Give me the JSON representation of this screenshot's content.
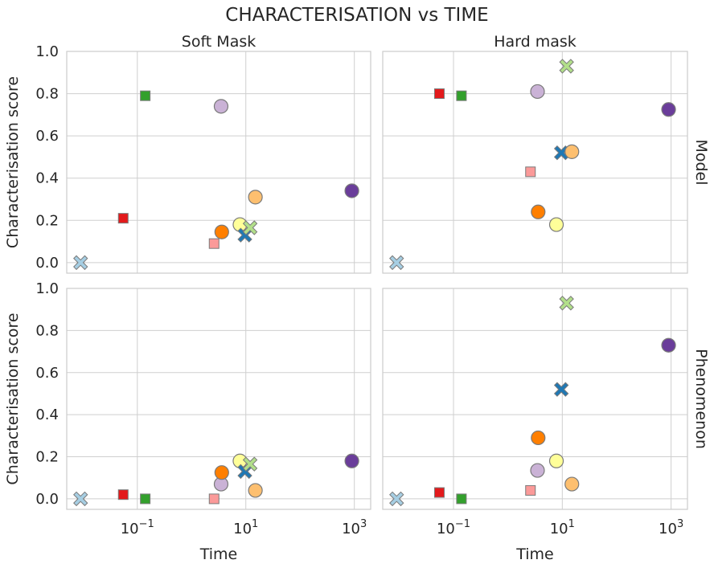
{
  "chart_data": {
    "type": "scatter",
    "title": "CHARACTERISATION vs TIME",
    "xlabel": "Time",
    "ylabel": "Characterisation score",
    "x_scale": "log",
    "xlim": [
      0.005,
      2000
    ],
    "ylim": [
      -0.05,
      1.0
    ],
    "x_ticks": [
      {
        "value": 0.1,
        "base": "10",
        "exp": "−1"
      },
      {
        "value": 10,
        "base": "10",
        "exp": "1"
      },
      {
        "value": 1000,
        "base": "10",
        "exp": "3"
      }
    ],
    "y_ticks": [
      "0.0",
      "0.2",
      "0.4",
      "0.6",
      "0.8",
      "1.0"
    ],
    "columns": [
      "Soft Mask",
      "Hard mask"
    ],
    "rows": [
      "Model",
      "Phenomenon"
    ],
    "grid": true,
    "panels": [
      {
        "row": "Model",
        "column": "Soft Mask",
        "points": [
          {
            "x": 0.009,
            "y": 0.0,
            "color": "#a6cee3",
            "marker": "X"
          },
          {
            "x": 0.055,
            "y": 0.21,
            "color": "#e31a1c",
            "marker": "s"
          },
          {
            "x": 0.14,
            "y": 0.79,
            "color": "#33a02c",
            "marker": "s"
          },
          {
            "x": 2.6,
            "y": 0.09,
            "color": "#fb9a99",
            "marker": "s"
          },
          {
            "x": 3.5,
            "y": 0.74,
            "color": "#cab2d6",
            "marker": "o"
          },
          {
            "x": 3.6,
            "y": 0.145,
            "color": "#ff7f00",
            "marker": "o"
          },
          {
            "x": 7.8,
            "y": 0.18,
            "color": "#ffff99",
            "marker": "o"
          },
          {
            "x": 9.6,
            "y": 0.13,
            "color": "#1f78b4",
            "marker": "X"
          },
          {
            "x": 12.0,
            "y": 0.165,
            "color": "#b2df8a",
            "marker": "X"
          },
          {
            "x": 15.0,
            "y": 0.31,
            "color": "#fdbf6f",
            "marker": "o"
          },
          {
            "x": 900,
            "y": 0.34,
            "color": "#6a3d9a",
            "marker": "o"
          }
        ]
      },
      {
        "row": "Model",
        "column": "Hard mask",
        "points": [
          {
            "x": 0.009,
            "y": 0.0,
            "color": "#a6cee3",
            "marker": "X"
          },
          {
            "x": 0.055,
            "y": 0.8,
            "color": "#e31a1c",
            "marker": "s"
          },
          {
            "x": 0.14,
            "y": 0.79,
            "color": "#33a02c",
            "marker": "s"
          },
          {
            "x": 2.6,
            "y": 0.43,
            "color": "#fb9a99",
            "marker": "s"
          },
          {
            "x": 3.5,
            "y": 0.81,
            "color": "#cab2d6",
            "marker": "o"
          },
          {
            "x": 3.6,
            "y": 0.24,
            "color": "#ff7f00",
            "marker": "o"
          },
          {
            "x": 7.8,
            "y": 0.18,
            "color": "#ffff99",
            "marker": "o"
          },
          {
            "x": 9.6,
            "y": 0.52,
            "color": "#1f78b4",
            "marker": "X"
          },
          {
            "x": 12.0,
            "y": 0.93,
            "color": "#b2df8a",
            "marker": "X"
          },
          {
            "x": 15.0,
            "y": 0.525,
            "color": "#fdbf6f",
            "marker": "o"
          },
          {
            "x": 900,
            "y": 0.725,
            "color": "#6a3d9a",
            "marker": "o"
          }
        ]
      },
      {
        "row": "Phenomenon",
        "column": "Soft Mask",
        "points": [
          {
            "x": 0.009,
            "y": 0.0,
            "color": "#a6cee3",
            "marker": "X"
          },
          {
            "x": 0.055,
            "y": 0.02,
            "color": "#e31a1c",
            "marker": "s"
          },
          {
            "x": 0.14,
            "y": 0.0,
            "color": "#33a02c",
            "marker": "s"
          },
          {
            "x": 2.6,
            "y": 0.0,
            "color": "#fb9a99",
            "marker": "s"
          },
          {
            "x": 3.5,
            "y": 0.07,
            "color": "#cab2d6",
            "marker": "o"
          },
          {
            "x": 3.6,
            "y": 0.125,
            "color": "#ff7f00",
            "marker": "o"
          },
          {
            "x": 7.8,
            "y": 0.18,
            "color": "#ffff99",
            "marker": "o"
          },
          {
            "x": 9.6,
            "y": 0.13,
            "color": "#1f78b4",
            "marker": "X"
          },
          {
            "x": 12.0,
            "y": 0.165,
            "color": "#b2df8a",
            "marker": "X"
          },
          {
            "x": 15.0,
            "y": 0.04,
            "color": "#fdbf6f",
            "marker": "o"
          },
          {
            "x": 900,
            "y": 0.18,
            "color": "#6a3d9a",
            "marker": "o"
          }
        ]
      },
      {
        "row": "Phenomenon",
        "column": "Hard mask",
        "points": [
          {
            "x": 0.009,
            "y": 0.0,
            "color": "#a6cee3",
            "marker": "X"
          },
          {
            "x": 0.055,
            "y": 0.03,
            "color": "#e31a1c",
            "marker": "s"
          },
          {
            "x": 0.14,
            "y": 0.0,
            "color": "#33a02c",
            "marker": "s"
          },
          {
            "x": 2.6,
            "y": 0.04,
            "color": "#fb9a99",
            "marker": "s"
          },
          {
            "x": 3.5,
            "y": 0.135,
            "color": "#cab2d6",
            "marker": "o"
          },
          {
            "x": 3.6,
            "y": 0.29,
            "color": "#ff7f00",
            "marker": "o"
          },
          {
            "x": 7.8,
            "y": 0.18,
            "color": "#ffff99",
            "marker": "o"
          },
          {
            "x": 9.6,
            "y": 0.52,
            "color": "#1f78b4",
            "marker": "X"
          },
          {
            "x": 12.0,
            "y": 0.93,
            "color": "#b2df8a",
            "marker": "X"
          },
          {
            "x": 15.0,
            "y": 0.07,
            "color": "#fdbf6f",
            "marker": "o"
          },
          {
            "x": 900,
            "y": 0.73,
            "color": "#6a3d9a",
            "marker": "o"
          }
        ]
      }
    ]
  }
}
